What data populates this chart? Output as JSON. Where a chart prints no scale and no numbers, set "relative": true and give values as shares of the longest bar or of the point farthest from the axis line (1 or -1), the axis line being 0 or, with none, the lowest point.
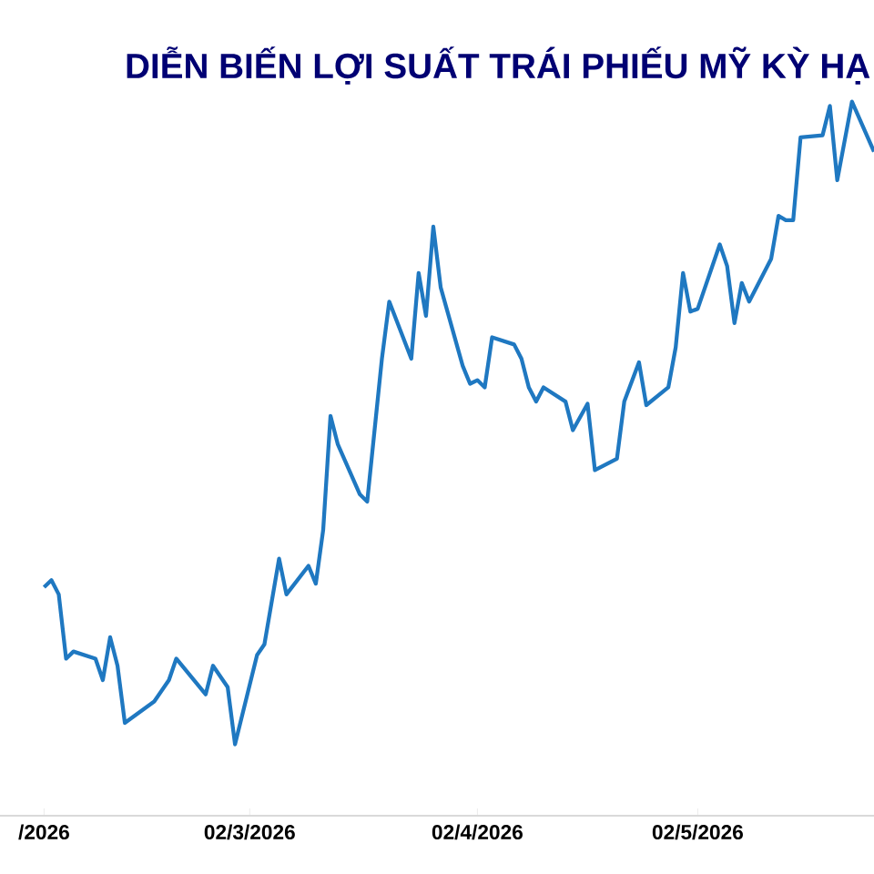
{
  "chart_data": {
    "type": "line",
    "title": "DIỄN BIẾN LỢI SUẤT TRÁI PHIẾU MỸ KỲ HẠ",
    "relative": true,
    "marker": "none",
    "x": [
      "2026-02-02",
      "2026-02-03",
      "2026-02-04",
      "2026-02-05",
      "2026-02-06",
      "2026-02-09",
      "2026-02-10",
      "2026-02-11",
      "2026-02-12",
      "2026-02-13",
      "2026-02-17",
      "2026-02-19",
      "2026-02-20",
      "2026-02-24",
      "2026-02-25",
      "2026-02-27",
      "2026-02-28",
      "2026-03-03",
      "2026-03-04",
      "2026-03-06",
      "2026-03-07",
      "2026-03-10",
      "2026-03-11",
      "2026-03-12",
      "2026-03-13",
      "2026-03-14",
      "2026-03-17",
      "2026-03-18",
      "2026-03-20",
      "2026-03-21",
      "2026-03-24",
      "2026-03-25",
      "2026-03-26",
      "2026-03-27",
      "2026-03-28",
      "2026-03-31",
      "2026-04-01",
      "2026-04-02",
      "2026-04-03",
      "2026-04-04",
      "2026-04-07",
      "2026-04-08",
      "2026-04-09",
      "2026-04-10",
      "2026-04-11",
      "2026-04-14",
      "2026-04-15",
      "2026-04-17",
      "2026-04-18",
      "2026-04-21",
      "2026-04-22",
      "2026-04-24",
      "2026-04-25",
      "2026-04-28",
      "2026-04-29",
      "2026-04-30",
      "2026-05-01",
      "2026-05-02",
      "2026-05-05",
      "2026-05-06",
      "2026-05-07",
      "2026-05-08",
      "2026-05-09",
      "2026-05-12",
      "2026-05-13",
      "2026-05-14",
      "2026-05-15",
      "2026-05-16",
      "2026-05-19",
      "2026-05-20",
      "2026-05-21",
      "2026-05-23",
      "2026-05-26"
    ],
    "series": [
      {
        "color": "#1f78c1",
        "values": [
          0.32,
          0.33,
          0.31,
          0.22,
          0.23,
          0.22,
          0.19,
          0.25,
          0.21,
          0.13,
          0.16,
          0.19,
          0.22,
          0.17,
          0.21,
          0.18,
          0.1,
          0.225,
          0.24,
          0.36,
          0.31,
          0.35,
          0.325,
          0.4,
          0.56,
          0.52,
          0.45,
          0.44,
          0.64,
          0.72,
          0.64,
          0.76,
          0.7,
          0.825,
          0.74,
          0.63,
          0.605,
          0.61,
          0.6,
          0.67,
          0.66,
          0.64,
          0.6,
          0.58,
          0.6,
          0.58,
          0.54,
          0.577,
          0.484,
          0.5,
          0.58,
          0.635,
          0.575,
          0.6,
          0.656,
          0.76,
          0.706,
          0.71,
          0.8,
          0.77,
          0.69,
          0.746,
          0.72,
          0.78,
          0.84,
          0.834,
          0.834,
          0.95,
          0.953,
          0.994,
          0.89,
          1.0,
          0.93
        ]
      }
    ],
    "xlim": [
      "2026-01-27",
      "2026-05-26"
    ],
    "xticks": [
      {
        "value": "2026-02-02",
        "label": "/2026"
      },
      {
        "value": "2026-03-02",
        "label": "02/3/2026"
      },
      {
        "value": "2026-04-02",
        "label": "02/4/2026"
      },
      {
        "value": "2026-05-02",
        "label": "02/5/2026"
      }
    ]
  }
}
